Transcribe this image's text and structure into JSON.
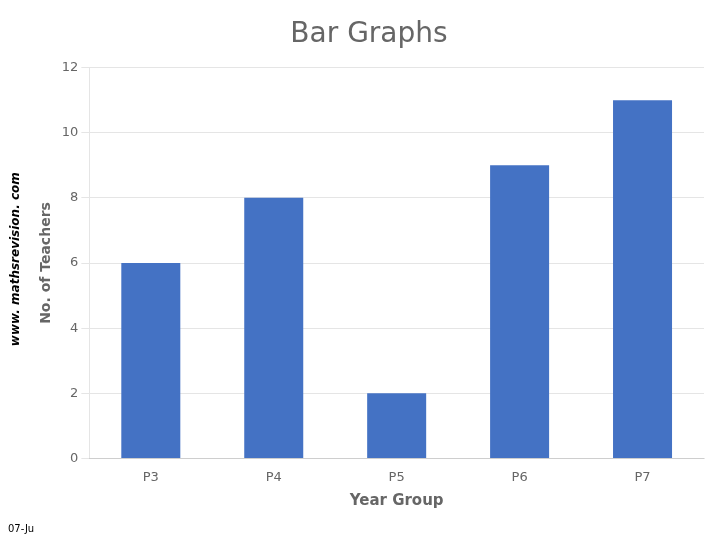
{
  "chart_data": {
    "type": "bar",
    "title": "Bar Graphs",
    "categories": [
      "P3",
      "P4",
      "P5",
      "P6",
      "P7"
    ],
    "values": [
      6,
      8,
      2,
      9,
      11
    ],
    "color": "#4472C4",
    "xlabel": "Year Group",
    "ylabel": "No. of Teachers",
    "ylim": [
      0,
      12
    ],
    "yticks": [
      0,
      2,
      4,
      6,
      8,
      10,
      12
    ],
    "grid": true,
    "annotations": [
      "www. mathsrevision. com",
      "07-Ju"
    ]
  }
}
